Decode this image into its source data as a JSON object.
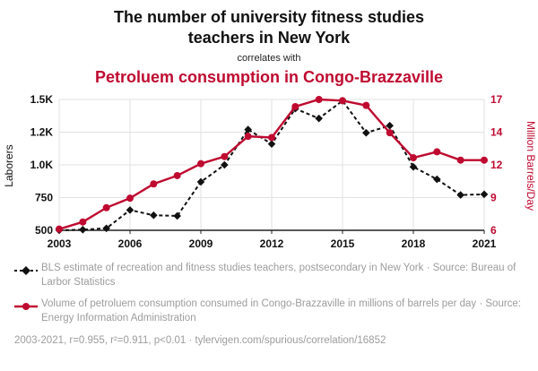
{
  "header": {
    "title": "The number of university fitness studies teachers in New York",
    "connector": "correlates with",
    "subtitle": "Petroluem consumption in Congo-Brazzaville"
  },
  "legend": [
    {
      "series": "teachers",
      "text": "BLS estimate of recreation and fitness studies teachers, postsecondary in New York · Source: Bureau of Larbor Statistics"
    },
    {
      "series": "petroleum",
      "text": "Volume of petroluem consumption consumed in Congo-Brazzaville in millions of barrels per day · Source: Energy Information Administration"
    }
  ],
  "footer": {
    "text": "2003-2021, r=0.955, r²=0.911, p<0.01 · tylervigen.com/spurious/correlation/16852"
  },
  "colors": {
    "accent_red": "#bf0a30",
    "series_black": "#111111",
    "muted_text": "#9c9c9c",
    "gridline": "#e2e2e2"
  },
  "chart_data": {
    "type": "line",
    "x": [
      2003,
      2004,
      2005,
      2006,
      2007,
      2008,
      2009,
      2010,
      2011,
      2012,
      2013,
      2014,
      2015,
      2016,
      2017,
      2018,
      2019,
      2020,
      2021
    ],
    "x_ticks": [
      2003,
      2006,
      2009,
      2012,
      2015,
      2018,
      2021
    ],
    "left_axis": {
      "label": "Laborers",
      "range": [
        500,
        1500
      ],
      "ticks": [
        500,
        750,
        1000,
        1250,
        1500
      ],
      "tick_labels": [
        "500",
        "750",
        "1.0K",
        "1.2K",
        "1.5K"
      ]
    },
    "right_axis": {
      "label": "Million Barrels/Day",
      "range": [
        6,
        17
      ],
      "ticks": [
        6,
        8.75,
        11.5,
        14.25,
        17
      ],
      "tick_labels": [
        "6",
        "9",
        "12",
        "14",
        "17"
      ]
    },
    "series": [
      {
        "name": "BLS estimate of recreation and fitness studies teachers, postsecondary in New York",
        "axis": "left",
        "color": "#111111",
        "marker": "diamond",
        "dash": true,
        "values": [
          500,
          505,
          515,
          655,
          615,
          610,
          870,
          1000,
          1270,
          1160,
          1430,
          1355,
          1490,
          1245,
          1300,
          985,
          890,
          770,
          775
        ]
      },
      {
        "name": "Volume of petroluem consumption consumed in Congo-Brazzaville",
        "axis": "right",
        "color": "#bf0a30",
        "marker": "circle",
        "dash": false,
        "values": [
          6.1,
          6.7,
          7.9,
          8.7,
          9.9,
          10.6,
          11.6,
          12.2,
          13.9,
          13.8,
          16.4,
          17.0,
          16.9,
          16.5,
          14.2,
          12.1,
          12.6,
          11.9,
          11.9
        ]
      }
    ]
  }
}
